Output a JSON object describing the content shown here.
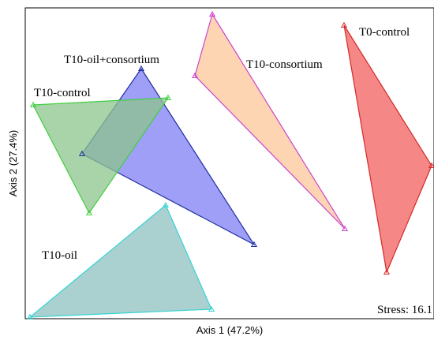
{
  "chart_data": {
    "type": "scatter",
    "xlabel": "Axis 1 (47.2%)",
    "ylabel": "Axis 2 (27.4%)",
    "annotation": "Stress: 16.1",
    "grid": false,
    "legend": "none",
    "groups": [
      {
        "name": "T0-control",
        "fill": "#f25f5f",
        "stroke": "#d42a2a",
        "points": [
          [
            436,
            32
          ],
          [
            547,
            210
          ],
          [
            490,
            345
          ]
        ]
      },
      {
        "name": "T10-consortium",
        "fill": "#fcc79a",
        "stroke": "#cc44cc",
        "points": [
          [
            269,
            18
          ],
          [
            247,
            96
          ],
          [
            437,
            290
          ]
        ]
      },
      {
        "name": "T10-oil+consortium",
        "fill": "#7f7ff5",
        "stroke": "#1f2ea0",
        "points": [
          [
            179,
            87
          ],
          [
            104,
            195
          ],
          [
            322,
            310
          ]
        ]
      },
      {
        "name": "T10-control",
        "fill": "#8cc48c",
        "stroke": "#3fcf3f",
        "points": [
          [
            42,
            133
          ],
          [
            213,
            124
          ],
          [
            113,
            270
          ]
        ]
      },
      {
        "name": "T10-oil",
        "fill": "#8ec0c0",
        "stroke": "#36d4d4",
        "points": [
          [
            210,
            260
          ],
          [
            268,
            392
          ],
          [
            38,
            402
          ]
        ]
      }
    ]
  }
}
